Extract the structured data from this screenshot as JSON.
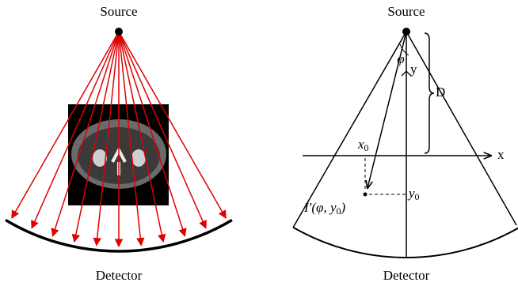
{
  "left_panel": {
    "source_label": "Source",
    "detector_label": "Detector"
  },
  "right_panel": {
    "source_label": "Source",
    "detector_label": "Detector",
    "phi_label": "φ",
    "y_axis_label": "y",
    "distance_label": "D",
    "x_axis_label": "x",
    "x0_label": {
      "base": "x",
      "sub": "0"
    },
    "y0_label": {
      "base": "y",
      "sub": "0"
    },
    "point_label": {
      "start": "I′(φ, y",
      "sub": "0",
      "end": ")"
    }
  }
}
